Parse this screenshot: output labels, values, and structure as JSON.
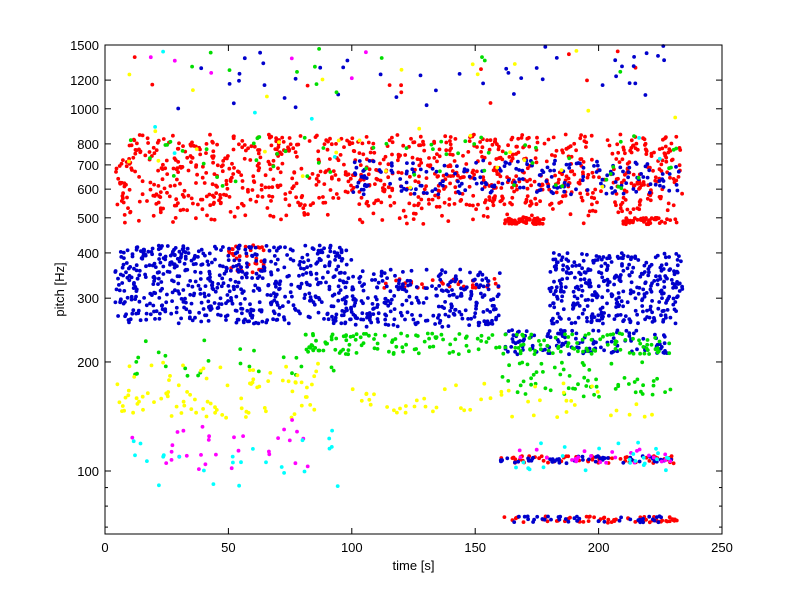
{
  "chart_data": {
    "type": "scatter",
    "title": "",
    "xlabel": "time [s]",
    "ylabel": "pitch [Hz]",
    "xlim": [
      0,
      250
    ],
    "ylim": [
      67,
      1500
    ],
    "yscale": "log",
    "grid": false,
    "legend": "none",
    "x_ticks": [
      0,
      50,
      100,
      150,
      200,
      250
    ],
    "y_ticks": [
      100,
      200,
      300,
      400,
      500,
      600,
      700,
      800,
      1000,
      1200,
      1500
    ],
    "y_minor_ticks": [
      70,
      80,
      90
    ],
    "series_colors": {
      "red": "#ff0000",
      "blue": "#0000cc",
      "green": "#00dd00",
      "yellow": "#ffff00",
      "magenta": "#ff00ff",
      "cyan": "#00ffff"
    },
    "clusters": [
      {
        "series": "red",
        "x": [
          4,
          234
        ],
        "y": [
          540,
          850
        ],
        "count": 900
      },
      {
        "series": "red",
        "x": [
          4,
          234
        ],
        "y": [
          480,
          540
        ],
        "count": 80
      },
      {
        "series": "red",
        "x": [
          162,
          178
        ],
        "y": [
          480,
          500
        ],
        "count": 60
      },
      {
        "series": "red",
        "x": [
          210,
          228
        ],
        "y": [
          480,
          500
        ],
        "count": 40
      },
      {
        "series": "red",
        "x": [
          50,
          65
        ],
        "y": [
          350,
          420
        ],
        "count": 30
      },
      {
        "series": "red",
        "x": [
          110,
          160
        ],
        "y": [
          320,
          340
        ],
        "count": 30
      },
      {
        "series": "red",
        "x": [
          160,
          232
        ],
        "y": [
          105,
          110
        ],
        "count": 60
      },
      {
        "series": "red",
        "x": [
          160,
          232
        ],
        "y": [
          72,
          75
        ],
        "count": 60
      },
      {
        "series": "red",
        "x": [
          5,
          232
        ],
        "y": [
          1000,
          1500
        ],
        "count": 12
      },
      {
        "series": "blue",
        "x": [
          4,
          100
        ],
        "y": [
          255,
          420
        ],
        "count": 600
      },
      {
        "series": "blue",
        "x": [
          100,
          160
        ],
        "y": [
          250,
          360
        ],
        "count": 250
      },
      {
        "series": "blue",
        "x": [
          180,
          234
        ],
        "y": [
          255,
          400
        ],
        "count": 350
      },
      {
        "series": "blue",
        "x": [
          100,
          234
        ],
        "y": [
          580,
          720
        ],
        "count": 200
      },
      {
        "series": "blue",
        "x": [
          162,
          228
        ],
        "y": [
          210,
          245
        ],
        "count": 120
      },
      {
        "series": "blue",
        "x": [
          160,
          230
        ],
        "y": [
          105,
          110
        ],
        "count": 50
      },
      {
        "series": "blue",
        "x": [
          160,
          230
        ],
        "y": [
          72,
          75
        ],
        "count": 40
      },
      {
        "series": "blue",
        "x": [
          5,
          232
        ],
        "y": [
          1000,
          1500
        ],
        "count": 45
      },
      {
        "series": "green",
        "x": [
          80,
          230
        ],
        "y": [
          210,
          240
        ],
        "count": 180
      },
      {
        "series": "green",
        "x": [
          160,
          230
        ],
        "y": [
          160,
          200
        ],
        "count": 60
      },
      {
        "series": "green",
        "x": [
          4,
          234
        ],
        "y": [
          600,
          850
        ],
        "count": 60
      },
      {
        "series": "green",
        "x": [
          10,
          100
        ],
        "y": [
          180,
          230
        ],
        "count": 30
      },
      {
        "series": "green",
        "x": [
          5,
          230
        ],
        "y": [
          1100,
          1500
        ],
        "count": 12
      },
      {
        "series": "yellow",
        "x": [
          5,
          90
        ],
        "y": [
          140,
          200
        ],
        "count": 90
      },
      {
        "series": "yellow",
        "x": [
          100,
          225
        ],
        "y": [
          140,
          175
        ],
        "count": 50
      },
      {
        "series": "yellow",
        "x": [
          5,
          232
        ],
        "y": [
          600,
          1500
        ],
        "count": 30
      },
      {
        "series": "magenta",
        "x": [
          8,
          90
        ],
        "y": [
          100,
          140
        ],
        "count": 30
      },
      {
        "series": "magenta",
        "x": [
          160,
          230
        ],
        "y": [
          105,
          115
        ],
        "count": 25
      },
      {
        "series": "magenta",
        "x": [
          5,
          230
        ],
        "y": [
          1200,
          1500
        ],
        "count": 6
      },
      {
        "series": "cyan",
        "x": [
          10,
          100
        ],
        "y": [
          90,
          130
        ],
        "count": 25
      },
      {
        "series": "cyan",
        "x": [
          150,
          230
        ],
        "y": [
          100,
          120
        ],
        "count": 25
      },
      {
        "series": "cyan",
        "x": [
          5,
          230
        ],
        "y": [
          600,
          1500
        ],
        "count": 8
      }
    ]
  }
}
